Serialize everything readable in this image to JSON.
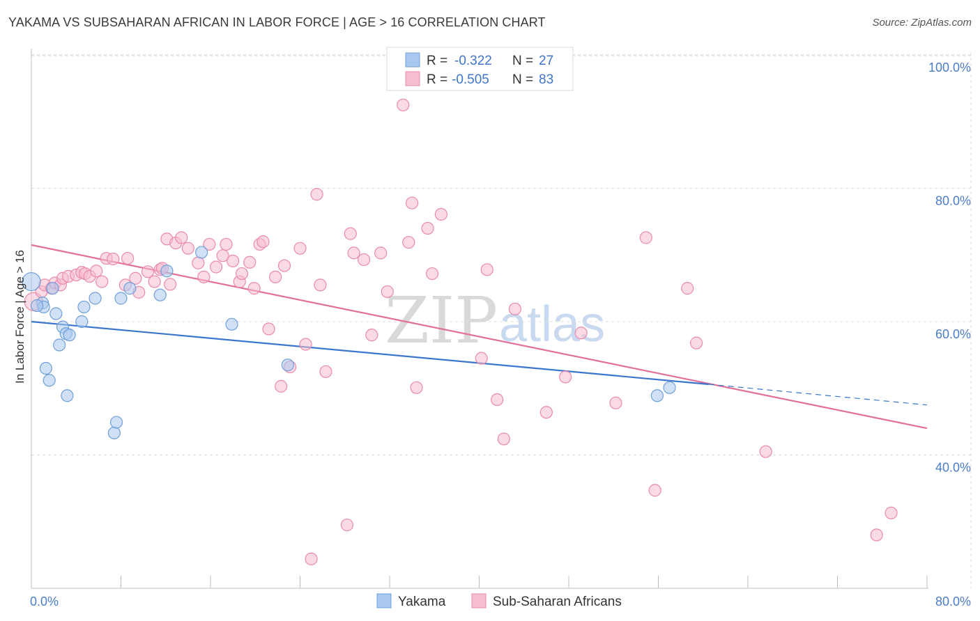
{
  "header": {
    "title": "YAKAMA VS SUBSAHARAN AFRICAN IN LABOR FORCE | AGE > 16 CORRELATION CHART",
    "source": "Source: ZipAtlas.com"
  },
  "watermark": {
    "zip": "ZIP",
    "atlas": "atlas"
  },
  "legend": {
    "rows": [
      {
        "r_label": "R =",
        "r_value": "-0.322",
        "n_label": "N =",
        "n_value": "27"
      },
      {
        "r_label": "R =",
        "r_value": "-0.505",
        "n_label": "N =",
        "n_value": "83"
      }
    ]
  },
  "bottom_legend": {
    "series1": "Yakama",
    "series2": "Sub-Saharan Africans"
  },
  "colors": {
    "yakama_fill": "#a9c8ef",
    "yakama_stroke": "#6f9fd8",
    "yakama_line": "#3a76cc",
    "ssa_fill": "#f6bcd0",
    "ssa_stroke": "#e98aab",
    "ssa_line": "#e0709a",
    "grid": "#dcdcdc",
    "tick_text": "#4a7cc7"
  },
  "chart_data": {
    "type": "scatter",
    "title": "YAKAMA VS SUBSAHARAN AFRICAN IN LABOR FORCE | AGE > 16 CORRELATION CHART",
    "xlabel": "",
    "ylabel": "In Labor Force | Age > 16",
    "xlim": [
      0,
      80
    ],
    "ylim": [
      20,
      102
    ],
    "x_tick_labels": [
      "0.0%",
      "80.0%"
    ],
    "y_ticks": [
      40,
      60,
      80,
      100
    ],
    "y_tick_labels": [
      "40.0%",
      "60.0%",
      "80.0%",
      "100.0%"
    ],
    "grid": true,
    "legend_position": "top-center",
    "series": [
      {
        "name": "Yakama",
        "r": -0.322,
        "n": 27,
        "points": [
          [
            0.0,
            66.0
          ],
          [
            1.0,
            62.8
          ],
          [
            1.1,
            62.2
          ],
          [
            1.3,
            53.0
          ],
          [
            1.6,
            51.2
          ],
          [
            1.9,
            65.0
          ],
          [
            2.2,
            61.2
          ],
          [
            2.5,
            56.5
          ],
          [
            2.8,
            59.2
          ],
          [
            3.1,
            58.2
          ],
          [
            3.2,
            48.9
          ],
          [
            3.4,
            58.0
          ],
          [
            4.5,
            60.0
          ],
          [
            4.7,
            62.2
          ],
          [
            5.7,
            63.5
          ],
          [
            7.4,
            43.3
          ],
          [
            7.6,
            44.9
          ],
          [
            8.0,
            63.5
          ],
          [
            8.8,
            65.0
          ],
          [
            11.5,
            64.0
          ],
          [
            12.1,
            67.6
          ],
          [
            15.2,
            70.4
          ],
          [
            17.9,
            59.6
          ],
          [
            22.9,
            53.5
          ],
          [
            55.9,
            48.9
          ],
          [
            57.0,
            50.1
          ],
          [
            0.5,
            62.4
          ]
        ],
        "trend": {
          "x": [
            0,
            60.5
          ],
          "y": [
            60.0,
            50.6
          ]
        },
        "trend_dashed": {
          "x": [
            60.5,
            80
          ],
          "y": [
            50.6,
            47.5
          ]
        }
      },
      {
        "name": "Sub-Saharan Africans",
        "r": -0.505,
        "n": 83,
        "points": [
          [
            0.2,
            63.0
          ],
          [
            0.9,
            64.5
          ],
          [
            1.2,
            65.5
          ],
          [
            1.8,
            65.0
          ],
          [
            2.1,
            65.8
          ],
          [
            2.6,
            65.5
          ],
          [
            2.8,
            66.5
          ],
          [
            3.3,
            66.8
          ],
          [
            4.0,
            67.0
          ],
          [
            4.5,
            67.4
          ],
          [
            4.8,
            67.2
          ],
          [
            5.2,
            66.8
          ],
          [
            5.8,
            67.6
          ],
          [
            6.3,
            66.0
          ],
          [
            6.7,
            69.5
          ],
          [
            7.3,
            69.4
          ],
          [
            8.4,
            65.5
          ],
          [
            8.6,
            69.5
          ],
          [
            9.3,
            66.5
          ],
          [
            9.6,
            64.4
          ],
          [
            10.4,
            67.5
          ],
          [
            11.0,
            66.0
          ],
          [
            11.5,
            67.8
          ],
          [
            11.7,
            68.0
          ],
          [
            12.1,
            72.4
          ],
          [
            12.4,
            65.6
          ],
          [
            12.9,
            71.8
          ],
          [
            13.4,
            72.6
          ],
          [
            14.0,
            71.0
          ],
          [
            14.9,
            68.8
          ],
          [
            15.4,
            66.7
          ],
          [
            15.9,
            71.6
          ],
          [
            16.5,
            68.2
          ],
          [
            17.1,
            69.9
          ],
          [
            17.4,
            71.6
          ],
          [
            18.0,
            69.1
          ],
          [
            18.6,
            66.0
          ],
          [
            18.8,
            67.2
          ],
          [
            19.5,
            68.9
          ],
          [
            19.9,
            65.0
          ],
          [
            20.4,
            71.6
          ],
          [
            20.7,
            72.0
          ],
          [
            21.2,
            58.9
          ],
          [
            21.8,
            66.7
          ],
          [
            22.3,
            50.3
          ],
          [
            22.6,
            68.4
          ],
          [
            23.1,
            53.2
          ],
          [
            24.0,
            71.0
          ],
          [
            24.5,
            56.6
          ],
          [
            25.0,
            24.4
          ],
          [
            25.5,
            79.1
          ],
          [
            25.8,
            65.5
          ],
          [
            26.3,
            52.5
          ],
          [
            28.2,
            29.5
          ],
          [
            28.5,
            73.2
          ],
          [
            28.8,
            70.3
          ],
          [
            29.7,
            69.3
          ],
          [
            30.4,
            58.0
          ],
          [
            31.2,
            70.3
          ],
          [
            31.8,
            64.5
          ],
          [
            33.2,
            92.5
          ],
          [
            33.7,
            71.9
          ],
          [
            34.0,
            77.8
          ],
          [
            34.4,
            50.1
          ],
          [
            35.4,
            74.0
          ],
          [
            35.8,
            67.2
          ],
          [
            36.6,
            76.1
          ],
          [
            40.2,
            54.5
          ],
          [
            40.7,
            67.8
          ],
          [
            41.6,
            48.3
          ],
          [
            42.2,
            42.4
          ],
          [
            43.2,
            61.9
          ],
          [
            46.0,
            46.4
          ],
          [
            47.7,
            51.7
          ],
          [
            49.1,
            58.3
          ],
          [
            52.2,
            47.8
          ],
          [
            54.9,
            72.6
          ],
          [
            55.7,
            34.7
          ],
          [
            58.6,
            65.0
          ],
          [
            59.4,
            56.8
          ],
          [
            65.6,
            40.5
          ],
          [
            75.5,
            28.0
          ],
          [
            76.8,
            31.3
          ]
        ],
        "trend": {
          "x": [
            0,
            80
          ],
          "y": [
            71.5,
            44.0
          ]
        }
      }
    ]
  }
}
